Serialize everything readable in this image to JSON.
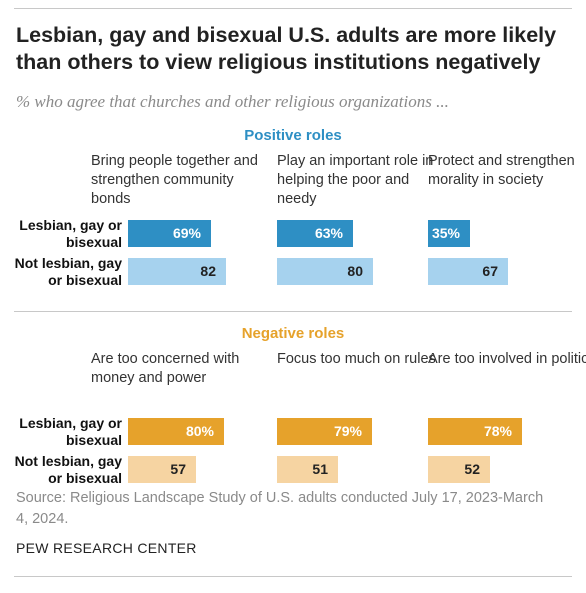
{
  "title": "Lesbian, gay and bisexual U.S. adults are more likely than others to view religious institutions negatively",
  "subtitle": "% who agree that churches and other religious organizations ...",
  "colors": {
    "positive_lgb": "#2e8fc4",
    "positive_other": "#a6d2ee",
    "positive_heading": "#2e8fc4",
    "negative_lgb": "#e6a22b",
    "negative_other": "#f6d4a2",
    "negative_heading": "#e6a22b"
  },
  "row_labels": [
    "Lesbian, gay or bisexual",
    "Not lesbian, gay or bisexual"
  ],
  "chart_data": [
    {
      "type": "bar",
      "title": "Positive roles",
      "categories": [
        "Bring people together and strengthen community bonds",
        "Play an important role in helping the poor and needy",
        "Protect and strengthen morality in society"
      ],
      "series": [
        {
          "name": "Lesbian, gay or bisexual",
          "values": [
            69,
            63,
            35
          ],
          "labels": [
            "69%",
            "63%",
            "35%"
          ]
        },
        {
          "name": "Not lesbian, gay or bisexual",
          "values": [
            82,
            80,
            67
          ],
          "labels": [
            "82",
            "80",
            "67"
          ]
        }
      ],
      "ylim": [
        0,
        100
      ]
    },
    {
      "type": "bar",
      "title": "Negative roles",
      "categories": [
        "Are too concerned with money and power",
        "Focus too much on rules",
        "Are too involved in politics"
      ],
      "series": [
        {
          "name": "Lesbian, gay or bisexual",
          "values": [
            80,
            79,
            78
          ],
          "labels": [
            "80%",
            "79%",
            "78%"
          ]
        },
        {
          "name": "Not lesbian, gay or bisexual",
          "values": [
            57,
            51,
            52
          ],
          "labels": [
            "57",
            "51",
            "52"
          ]
        }
      ],
      "ylim": [
        0,
        100
      ]
    }
  ],
  "source": "Source: Religious Landscape Study of U.S. adults conducted July 17, 2023-March 4, 2024.",
  "credit": "PEW RESEARCH CENTER"
}
